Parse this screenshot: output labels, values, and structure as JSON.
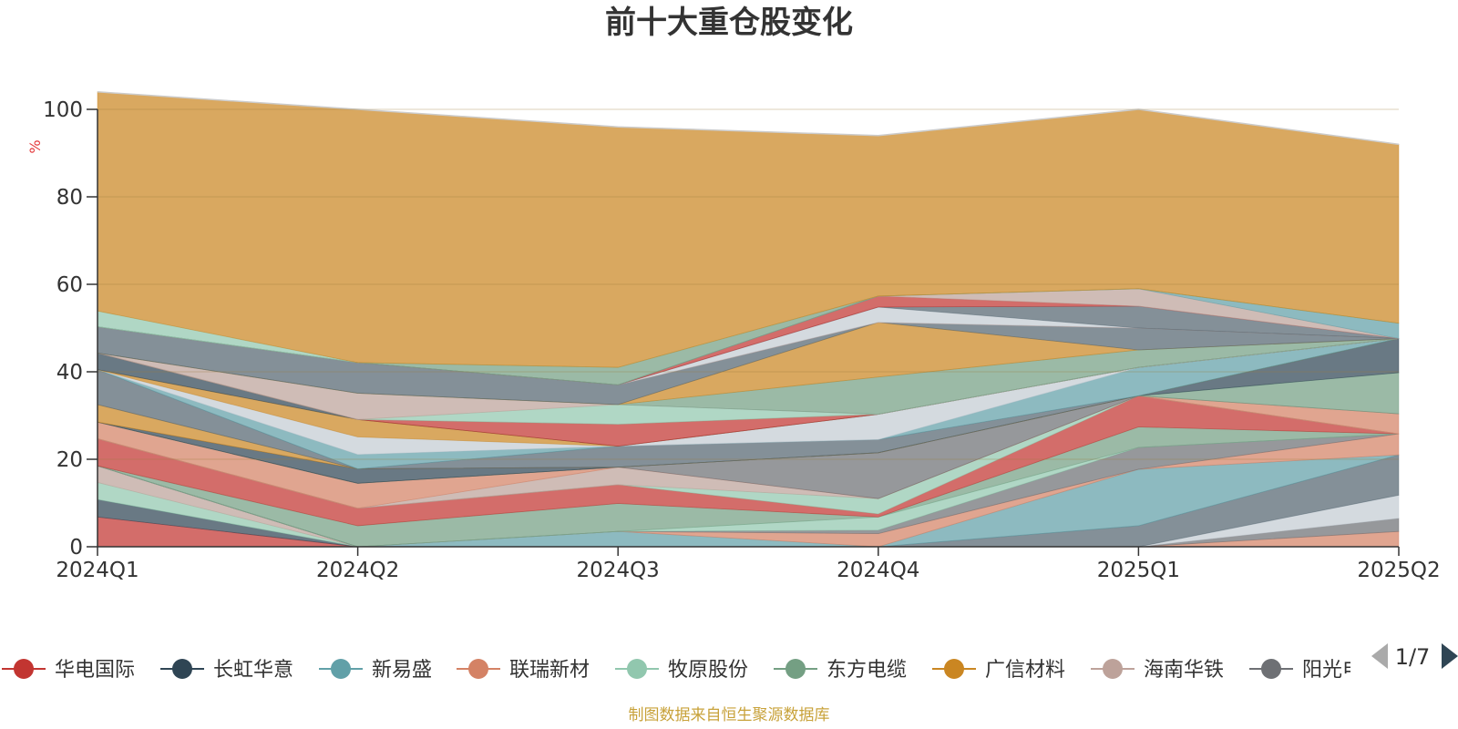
{
  "chart_data": {
    "type": "area",
    "stacked": true,
    "title": "前十大重仓股变化",
    "ylabel": "%",
    "ylim": [
      0,
      100
    ],
    "yticks": [
      0,
      20,
      40,
      60,
      80,
      100
    ],
    "categories": [
      "2024Q1",
      "2024Q2",
      "2024Q3",
      "2024Q4",
      "2025Q1",
      "2025Q2"
    ],
    "grid": true,
    "legend": {
      "position": "bottom",
      "page": "1/7",
      "items": [
        {
          "name": "华电国际",
          "color": "#c23531"
        },
        {
          "name": "长虹华意",
          "color": "#2f4554"
        },
        {
          "name": "新易盛",
          "color": "#61a0a8"
        },
        {
          "name": "联瑞新材",
          "color": "#d48265"
        },
        {
          "name": "牧原股份",
          "color": "#91c7ae"
        },
        {
          "name": "东方电缆",
          "color": "#749f83"
        },
        {
          "name": "广信材料",
          "color": "#ca8622"
        },
        {
          "name": "海南华铁",
          "color": "#bda29a"
        },
        {
          "name": "阳光电源",
          "color": "#6e7074"
        }
      ]
    },
    "series": [
      {
        "color": "#c23531",
        "values": [
          6.8,
          0.0,
          0.0,
          0.0,
          0.0,
          0.0
        ]
      },
      {
        "color": "#2f4554",
        "values": [
          4.0,
          0.0,
          0.0,
          0.0,
          0.0,
          0.0
        ]
      },
      {
        "color": "#91c7ae",
        "values": [
          3.9,
          0.0,
          0.0,
          0.0,
          0.0,
          0.0
        ]
      },
      {
        "color": "#bda29a",
        "values": [
          3.8,
          0.0,
          0.0,
          0.0,
          0.0,
          0.0
        ]
      },
      {
        "color": "#d48265",
        "values": [
          0.0,
          0.0,
          0.0,
          0.0,
          0.0,
          3.5
        ]
      },
      {
        "color": "#6e7074",
        "values": [
          0.0,
          0.0,
          0.0,
          0.0,
          0.0,
          3.0
        ]
      },
      {
        "color": "#c4ccd3",
        "values": [
          0.0,
          0.0,
          0.0,
          0.0,
          0.0,
          5.3
        ]
      },
      {
        "color": "#546570",
        "values": [
          0.0,
          0.0,
          0.0,
          0.0,
          4.8,
          9.2
        ]
      },
      {
        "color": "#61a0a8",
        "values": [
          0.0,
          0.0,
          3.5,
          0.0,
          12.9,
          0.0
        ]
      },
      {
        "color": "#d48265",
        "values": [
          0.0,
          0.0,
          0.0,
          3.0,
          0.0,
          4.8
        ]
      },
      {
        "color": "#6e7074",
        "values": [
          0.0,
          0.0,
          0.0,
          0.8,
          5.0,
          0.0
        ]
      },
      {
        "color": "#91c7ae",
        "values": [
          0.0,
          0.0,
          0.0,
          3.0,
          0.0,
          0.0
        ]
      },
      {
        "color": "#749f83",
        "values": [
          0.0,
          4.8,
          6.4,
          0.0,
          4.7,
          0.0
        ]
      },
      {
        "color": "#c23531",
        "values": [
          6.2,
          4.0,
          4.3,
          0.7,
          7.1,
          0.0
        ]
      },
      {
        "color": "#91c7ae",
        "values": [
          0.0,
          0.0,
          0.0,
          3.5,
          0.0,
          0.0
        ]
      },
      {
        "color": "#bda29a",
        "values": [
          0.0,
          0.0,
          4.0,
          0.0,
          0.0,
          0.0
        ]
      },
      {
        "color": "#d48265",
        "values": [
          3.8,
          5.7,
          0.0,
          0.0,
          0.0,
          4.6
        ]
      },
      {
        "color": "#6e7074",
        "values": [
          0.0,
          0.0,
          0.0,
          10.5,
          0.0,
          0.0
        ]
      },
      {
        "color": "#749f83",
        "values": [
          0.0,
          0.0,
          0.0,
          0.0,
          0.0,
          9.4
        ]
      },
      {
        "color": "#2f4554",
        "values": [
          0.0,
          3.3,
          0.0,
          0.0,
          0.0,
          7.8
        ]
      },
      {
        "color": "#ca8622",
        "values": [
          4.0,
          0.0,
          0.0,
          0.0,
          0.0,
          0.0
        ]
      },
      {
        "color": "#546570",
        "values": [
          8.0,
          0.0,
          4.8,
          3.0,
          0.0,
          0.0
        ]
      },
      {
        "color": "#61a0a8",
        "values": [
          0.0,
          3.3,
          0.0,
          0.0,
          6.5,
          0.0
        ]
      },
      {
        "color": "#c4ccd3",
        "values": [
          0.0,
          4.0,
          0.0,
          5.8,
          0.0,
          0.0
        ]
      },
      {
        "color": "#ca8622",
        "values": [
          0.0,
          4.0,
          0.0,
          0.0,
          0.0,
          0.0
        ]
      },
      {
        "color": "#2f4554",
        "values": [
          3.8,
          0.0,
          0.0,
          0.0,
          0.0,
          0.0
        ]
      },
      {
        "color": "#c23531",
        "values": [
          0.0,
          0.0,
          5.0,
          0.0,
          0.0,
          0.0
        ]
      },
      {
        "color": "#91c7ae",
        "values": [
          0.0,
          0.0,
          4.5,
          0.0,
          0.0,
          0.0
        ]
      },
      {
        "color": "#bda29a",
        "values": [
          0.0,
          6.0,
          0.0,
          0.0,
          0.0,
          0.0
        ]
      },
      {
        "color": "#c4ccd3",
        "values": [
          0.0,
          0.0,
          0.0,
          0.0,
          0.0,
          0.0
        ]
      },
      {
        "color": "#749f83",
        "values": [
          0.0,
          0.0,
          0.0,
          8.5,
          4.0,
          0.0
        ]
      },
      {
        "color": "#ca8622",
        "values": [
          0.0,
          0.0,
          0.0,
          12.5,
          0.0,
          0.0
        ]
      },
      {
        "color": "#546570",
        "values": [
          6.0,
          7.0,
          4.5,
          0.0,
          5.0,
          0.0
        ]
      },
      {
        "color": "#d48265",
        "values": [
          0.0,
          0.0,
          0.0,
          0.0,
          0.0,
          0.0
        ]
      },
      {
        "color": "#c4ccd3",
        "values": [
          0.0,
          0.0,
          0.0,
          3.5,
          0.0,
          0.0
        ]
      },
      {
        "color": "#546570",
        "values": [
          0.0,
          0.0,
          0.0,
          0.0,
          5.0,
          0.0
        ]
      },
      {
        "color": "#c23531",
        "values": [
          0.0,
          0.0,
          0.0,
          2.5,
          0.0,
          0.0
        ]
      },
      {
        "color": "#bda29a",
        "values": [
          0.0,
          0.0,
          0.0,
          0.0,
          4.0,
          0.0
        ]
      },
      {
        "color": "#61a0a8",
        "values": [
          0.0,
          0.0,
          0.0,
          0.0,
          0.0,
          3.5
        ]
      },
      {
        "color": "#749f83",
        "values": [
          0.0,
          0.0,
          4.0,
          0.0,
          0.0,
          0.0
        ]
      },
      {
        "color": "#91c7ae",
        "values": [
          3.6,
          0.0,
          0.0,
          0.0,
          0.0,
          0.0
        ]
      },
      {
        "color": "#ca8622",
        "values": [
          50.1,
          57.9,
          55.0,
          36.7,
          41.0,
          40.9
        ]
      }
    ]
  },
  "source_note": "制图数据来自恒生聚源数据库"
}
